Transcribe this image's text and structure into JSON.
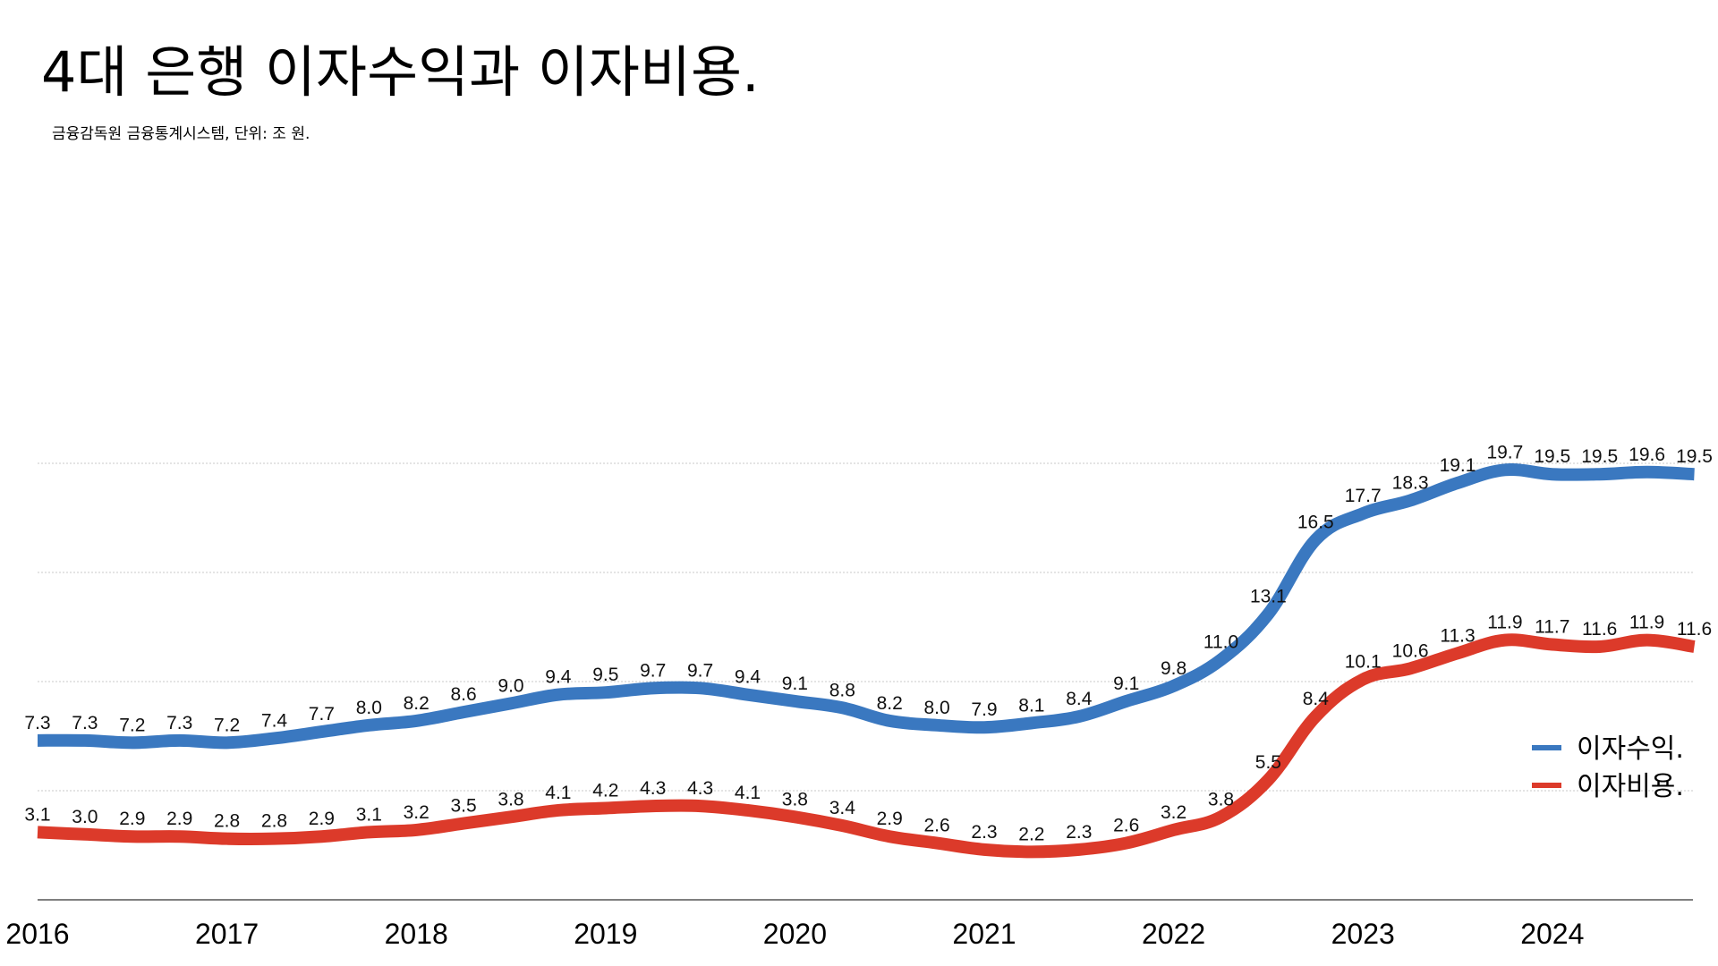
{
  "chart_data": {
    "type": "line",
    "title": "4대 은행 이자수익과 이자비용.",
    "subtitle": "금융감독원 금융통계시스템, 단위: 조 원.",
    "xlabel": "",
    "ylabel": "",
    "ylim": [
      0,
      20
    ],
    "grid": true,
    "legend_position": "bottom-right",
    "year_ticks": [
      "2016",
      "2017",
      "2018",
      "2019",
      "2020",
      "2021",
      "2022",
      "2023",
      "2024"
    ],
    "series": [
      {
        "name": "이자수익.",
        "color": "#3a78c0",
        "values": [
          7.3,
          7.3,
          7.2,
          7.3,
          7.2,
          7.4,
          7.7,
          8.0,
          8.2,
          8.6,
          9.0,
          9.4,
          9.5,
          9.7,
          9.7,
          9.4,
          9.1,
          8.8,
          8.2,
          8.0,
          7.9,
          8.1,
          8.4,
          9.1,
          9.8,
          11.0,
          13.1,
          16.5,
          17.7,
          18.3,
          19.1,
          19.7,
          19.5,
          19.5,
          19.6,
          19.5
        ]
      },
      {
        "name": "이자비용.",
        "color": "#dc3a2a",
        "values": [
          3.1,
          3.0,
          2.9,
          2.9,
          2.8,
          2.8,
          2.9,
          3.1,
          3.2,
          3.5,
          3.8,
          4.1,
          4.2,
          4.3,
          4.3,
          4.1,
          3.8,
          3.4,
          2.9,
          2.6,
          2.3,
          2.2,
          2.3,
          2.6,
          3.2,
          3.8,
          5.5,
          8.4,
          10.1,
          10.6,
          11.3,
          11.9,
          11.7,
          11.6,
          11.9,
          11.6
        ]
      }
    ]
  }
}
